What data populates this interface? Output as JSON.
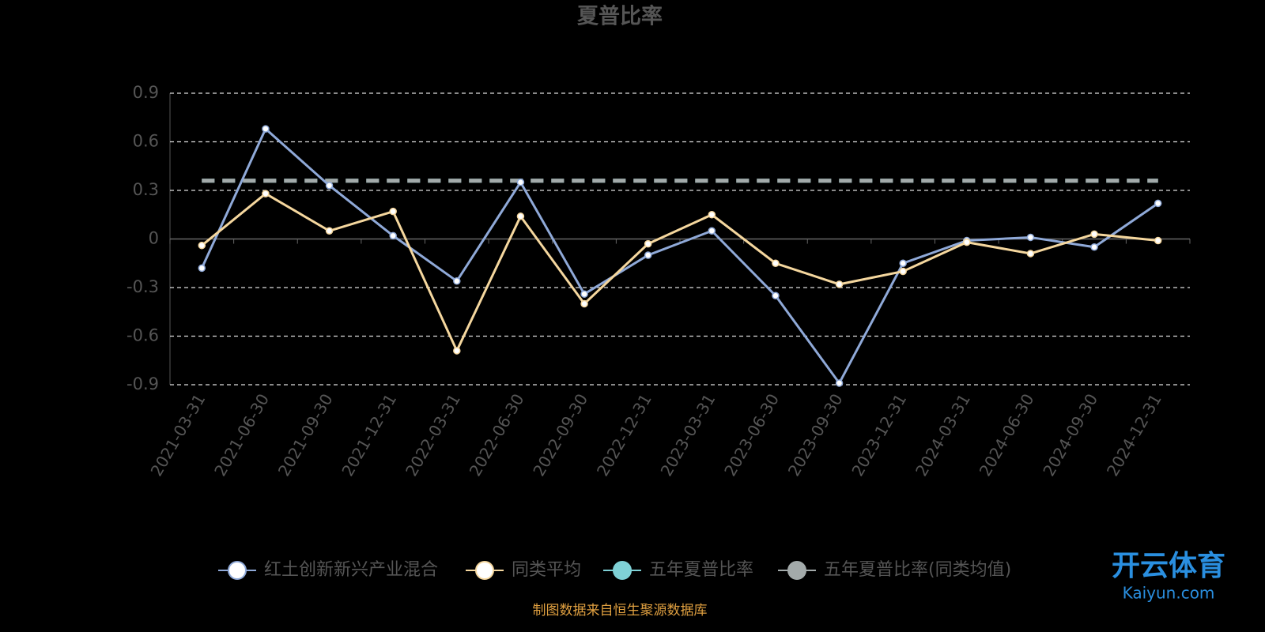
{
  "chart_data": {
    "type": "line",
    "title": "夏普比率",
    "categories": [
      "2021-03-31",
      "2021-06-30",
      "2021-09-30",
      "2021-12-31",
      "2022-03-31",
      "2022-06-30",
      "2022-09-30",
      "2022-12-31",
      "2023-03-31",
      "2023-06-30",
      "2023-09-30",
      "2023-12-31",
      "2024-03-31",
      "2024-06-30",
      "2024-09-30",
      "2024-12-31"
    ],
    "series": [
      {
        "name": "红土创新新兴产业混合",
        "color": "#8fa9d8",
        "values": [
          -0.18,
          0.68,
          0.33,
          0.02,
          -0.26,
          0.35,
          -0.34,
          -0.1,
          0.05,
          -0.35,
          -0.89,
          -0.15,
          -0.01,
          0.01,
          -0.05,
          0.22
        ]
      },
      {
        "name": "同类平均",
        "color": "#f5d79e",
        "values": [
          -0.04,
          0.28,
          0.05,
          0.17,
          -0.69,
          0.14,
          -0.4,
          -0.03,
          0.15,
          -0.15,
          -0.28,
          -0.2,
          -0.02,
          -0.09,
          0.03,
          -0.01
        ]
      },
      {
        "name": "五年夏普比率",
        "color": "#7fd1d6",
        "dashed": true,
        "values": [
          0.36,
          0.36,
          0.36,
          0.36,
          0.36,
          0.36,
          0.36,
          0.36,
          0.36,
          0.36,
          0.36,
          0.36,
          0.36,
          0.36,
          0.36,
          0.36
        ]
      },
      {
        "name": "五年夏普比率(同类均值)",
        "color": "#a3aaaa",
        "dashed": true,
        "values": [
          0.36,
          0.36,
          0.36,
          0.36,
          0.36,
          0.36,
          0.36,
          0.36,
          0.36,
          0.36,
          0.36,
          0.36,
          0.36,
          0.36,
          0.36,
          0.36
        ]
      }
    ],
    "ylim": [
      -0.9,
      0.9
    ],
    "yticks": [
      -0.9,
      -0.6,
      -0.3,
      0,
      0.3,
      0.6,
      0.9
    ],
    "grid": true,
    "source": "制图数据来自恒生聚源数据库",
    "watermark": {
      "brand": "开云体育",
      "site": "Kaiyun.com"
    }
  }
}
